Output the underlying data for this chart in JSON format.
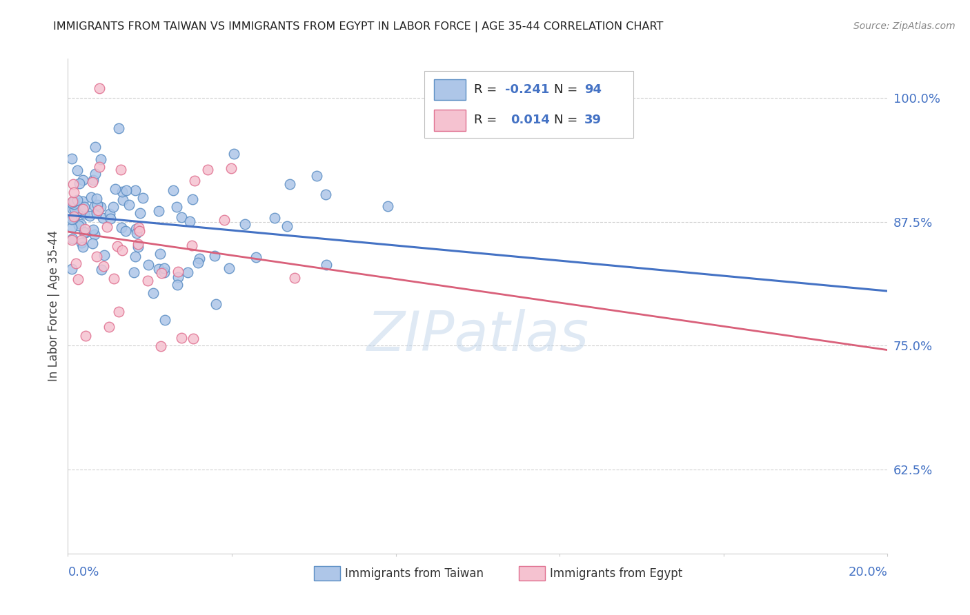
{
  "title": "IMMIGRANTS FROM TAIWAN VS IMMIGRANTS FROM EGYPT IN LABOR FORCE | AGE 35-44 CORRELATION CHART",
  "source": "Source: ZipAtlas.com",
  "ylabel": "In Labor Force | Age 35-44",
  "yticks": [
    0.625,
    0.75,
    0.875,
    1.0
  ],
  "ytick_labels": [
    "62.5%",
    "75.0%",
    "87.5%",
    "100.0%"
  ],
  "xmin": 0.0,
  "xmax": 0.2,
  "ymin": 0.54,
  "ymax": 1.04,
  "taiwan_R": -0.241,
  "taiwan_N": 94,
  "egypt_R": 0.014,
  "egypt_N": 39,
  "taiwan_color": "#aec6e8",
  "taiwan_edge_color": "#5b8ec4",
  "taiwan_line_color": "#4472c4",
  "egypt_color": "#f5c2d0",
  "egypt_edge_color": "#e07090",
  "egypt_line_color": "#d9607a",
  "legend_label_taiwan": "Immigrants from Taiwan",
  "legend_label_egypt": "Immigrants from Egypt",
  "watermark": "ZIPatlas",
  "background_color": "#ffffff",
  "grid_color": "#cccccc",
  "title_color": "#222222",
  "axis_tick_color": "#4472c4",
  "legend_R_color": "#4472c4",
  "legend_N_color": "#4472c4"
}
